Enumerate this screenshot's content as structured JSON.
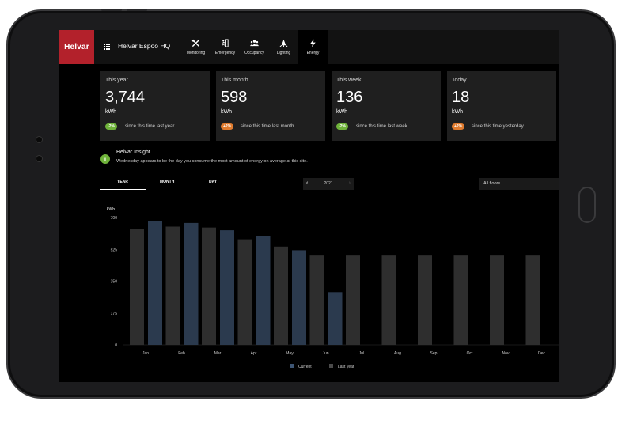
{
  "app": {
    "logo": "Helvar",
    "site_name": "Helvar Espoo HQ",
    "menu_icon": "grid-icon"
  },
  "nav": [
    {
      "label": "Monitoring",
      "icon": "tools-icon",
      "active": false
    },
    {
      "label": "Emergency",
      "icon": "emergency-exit-icon",
      "active": false
    },
    {
      "label": "Occupancy",
      "icon": "people-icon",
      "active": false
    },
    {
      "label": "Lighting",
      "icon": "light-icon",
      "active": false
    },
    {
      "label": "Energy",
      "icon": "bolt-icon",
      "active": true
    }
  ],
  "cards": [
    {
      "title": "This year",
      "value": "3,744",
      "unit": "kWh",
      "badge": "-2%",
      "badge_color": "#6fb33a",
      "compare": "since this time last year"
    },
    {
      "title": "This month",
      "value": "598",
      "unit": "kWh",
      "badge": "+2%",
      "badge_color": "#e07b2e",
      "compare": "since this time last month"
    },
    {
      "title": "This week",
      "value": "136",
      "unit": "kWh",
      "badge": "-2%",
      "badge_color": "#6fb33a",
      "compare": "since this time last week"
    },
    {
      "title": "Today",
      "value": "18",
      "unit": "kWh",
      "badge": "+2%",
      "badge_color": "#e07b2e",
      "compare": "since this time yesterday"
    }
  ],
  "insight": {
    "icon": "info-icon",
    "title": "Helvar Insight",
    "text": "Wednesday appears to be the day you consume the most amount of energy on average at this site."
  },
  "tabs": [
    {
      "label": "YEAR",
      "active": true
    },
    {
      "label": "MONTH",
      "active": false
    },
    {
      "label": "DAY",
      "active": false
    }
  ],
  "year_selector": {
    "value": "2021",
    "prev_icon": "chevron-left-icon",
    "next_icon": "chevron-right-icon"
  },
  "floor_selector": {
    "value": "All floors"
  },
  "chart_data": {
    "type": "bar",
    "ylabel": "kWh",
    "ylim": [
      0,
      700
    ],
    "yticks": [
      0,
      175,
      350,
      525,
      700
    ],
    "categories": [
      "Jan",
      "Feb",
      "Mar",
      "Apr",
      "May",
      "Jun",
      "Jul",
      "Aug",
      "Sep",
      "Oct",
      "Nov",
      "Dec"
    ],
    "series": [
      {
        "name": "Current",
        "color": "#2b3a4e",
        "values": [
          680,
          670,
          630,
          600,
          520,
          290,
          null,
          null,
          null,
          null,
          null,
          null
        ]
      },
      {
        "name": "Last year",
        "color": "#2e2e2e",
        "values": [
          635,
          650,
          645,
          580,
          540,
          495,
          495,
          495,
          495,
          495,
          495,
          495
        ]
      }
    ],
    "legend_position": "bottom"
  }
}
